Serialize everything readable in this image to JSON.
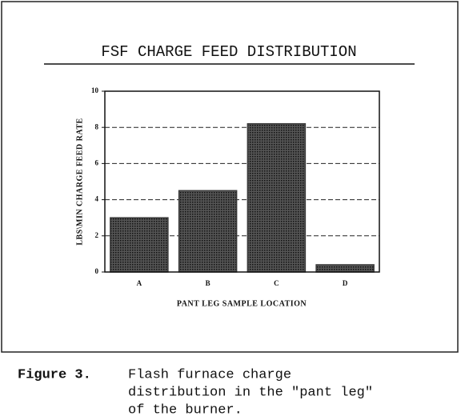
{
  "chart_data": {
    "type": "bar",
    "title": "FSF CHARGE FEED DISTRIBUTION",
    "x_label": "PANT LEG SAMPLE LOCATION",
    "y_label": "LBS\\MIN CHARGE FEED RATE",
    "categories": [
      "A",
      "B",
      "C",
      "D"
    ],
    "values": [
      3.0,
      4.5,
      8.2,
      0.4
    ],
    "color": "#3a3a3a",
    "ylim": [
      0,
      10
    ],
    "yticks": [
      0,
      2,
      4,
      6,
      8,
      10
    ],
    "grid": true
  },
  "caption": {
    "label": "Figure 3.",
    "lines": [
      "Flash furnace charge",
      "distribution in the \"pant leg\"",
      "of the burner."
    ]
  }
}
